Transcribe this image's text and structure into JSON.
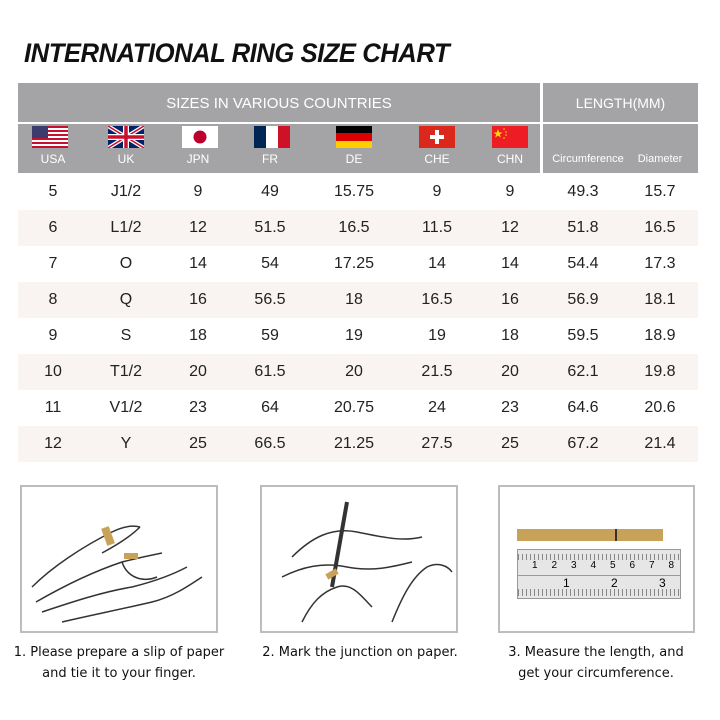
{
  "title": "INTERNATIONAL RING SIZE CHART",
  "header": {
    "group1": "SIZES IN VARIOUS COUNTRIES",
    "group2": "LENGTH(MM)",
    "columns": [
      "USA",
      "UK",
      "JPN",
      "FR",
      "DE",
      "CHE",
      "CHN",
      "Circumference",
      "Diameter"
    ]
  },
  "rows": [
    [
      "5",
      "J1/2",
      "9",
      "49",
      "15.75",
      "9",
      "9",
      "49.3",
      "15.7"
    ],
    [
      "6",
      "L1/2",
      "12",
      "51.5",
      "16.5",
      "11.5",
      "12",
      "51.8",
      "16.5"
    ],
    [
      "7",
      "O",
      "14",
      "54",
      "17.25",
      "14",
      "14",
      "54.4",
      "17.3"
    ],
    [
      "8",
      "Q",
      "16",
      "56.5",
      "18",
      "16.5",
      "16",
      "56.9",
      "18.1"
    ],
    [
      "9",
      "S",
      "18",
      "59",
      "19",
      "19",
      "18",
      "59.5",
      "18.9"
    ],
    [
      "10",
      "T1/2",
      "20",
      "61.5",
      "20",
      "21.5",
      "20",
      "62.1",
      "19.8"
    ],
    [
      "11",
      "V1/2",
      "23",
      "64",
      "20.75",
      "24",
      "23",
      "64.6",
      "20.6"
    ],
    [
      "12",
      "Y",
      "25",
      "66.5",
      "21.25",
      "27.5",
      "25",
      "67.2",
      "21.4"
    ]
  ],
  "steps": [
    {
      "line1": "1. Please prepare a slip of paper",
      "line2": "and tie it to your finger."
    },
    {
      "line1": "2. Mark the junction on paper.",
      "line2": ""
    },
    {
      "line1": "3. Measure the length, and",
      "line2": "get your circumference."
    }
  ],
  "ruler": {
    "top_ticks": [
      "1",
      "2",
      "3",
      "4",
      "5",
      "6",
      "7",
      "8"
    ],
    "bottom_ticks": [
      "1",
      "2",
      "3"
    ],
    "unit": "mm"
  },
  "colors": {
    "header": "#a4a4a6",
    "stripe": "#f9f3f1",
    "paper": "#c9a25a"
  }
}
